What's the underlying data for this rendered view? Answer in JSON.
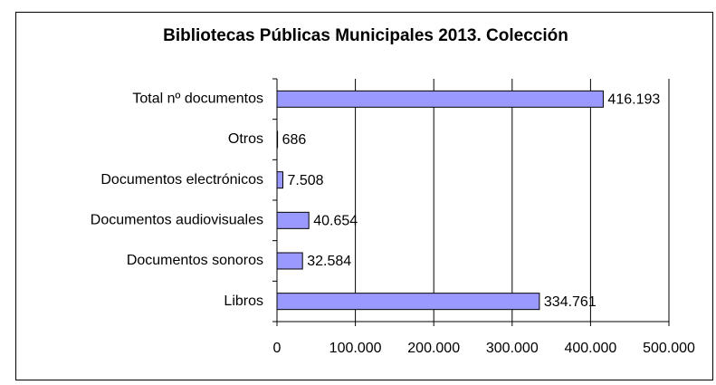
{
  "chart_data": {
    "type": "bar",
    "orientation": "horizontal",
    "title": "Bibliotecas Públicas Municipales 2013. Colección",
    "categories": [
      "Total nº documentos",
      "Otros",
      "Documentos electrónicos",
      "Documentos audiovisuales",
      "Documentos sonoros",
      "Libros"
    ],
    "values": [
      416193,
      686,
      7508,
      40654,
      32584,
      334761
    ],
    "value_labels": [
      "416.193",
      "686",
      "7.508",
      "40.654",
      "32.584",
      "334.761"
    ],
    "color": "#9999ff",
    "xlim": [
      0,
      500000
    ],
    "xticks": [
      0,
      {
        "value": 100000,
        "label": "100.000"
      },
      {
        "value": 200000,
        "label": "200.000"
      },
      {
        "value": 300000,
        "label": "300.000"
      },
      {
        "value": 400000,
        "label": "400.000"
      },
      {
        "value": 500000,
        "label": "500.000"
      }
    ],
    "grid": true
  }
}
